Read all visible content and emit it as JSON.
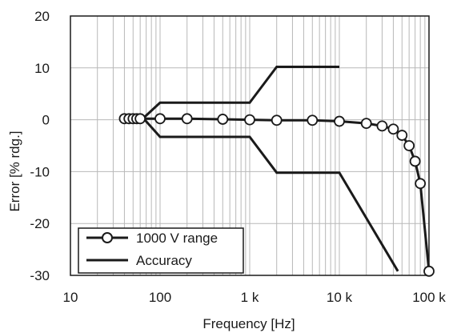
{
  "chart_data": {
    "type": "line",
    "xscale": "log",
    "xlim": [
      10,
      100000
    ],
    "ylim": [
      -30,
      20
    ],
    "xticks": [
      10,
      100,
      1000,
      10000,
      100000
    ],
    "xtick_labels": [
      "10",
      "100",
      "1 k",
      "10 k",
      "100 k"
    ],
    "yticks": [
      20,
      10,
      0,
      -10,
      -20,
      -30
    ],
    "ytick_labels": [
      "20",
      "10",
      "0",
      "-10",
      "-20",
      "-30"
    ],
    "xlabel": "Frequency [Hz]",
    "ylabel": "Error [% rdg.]",
    "grid": true,
    "legend_position": "bottom-left",
    "series": [
      {
        "name": "1000 V range",
        "color": "#1a1a1a",
        "marker": "circle-open",
        "x": [
          40,
          45,
          50,
          55,
          60,
          100,
          200,
          500,
          1000,
          2000,
          5000,
          10000,
          20000,
          30000,
          40000,
          50000,
          60000,
          70000,
          80000,
          100000
        ],
        "y": [
          0.2,
          0.2,
          0.2,
          0.2,
          0.2,
          0.2,
          0.2,
          0.1,
          0.0,
          -0.1,
          -0.1,
          -0.3,
          -0.7,
          -1.2,
          -1.8,
          -3.0,
          -5.0,
          -8.0,
          -12.3,
          -29.2
        ]
      },
      {
        "name": "Accuracy",
        "color": "#1a1a1a",
        "marker": "none",
        "segments": [
          {
            "x": [
              40,
              65,
              100,
              1000,
              2000,
              10000
            ],
            "y": [
              0.3,
              0.3,
              3.3,
              3.3,
              10.2,
              10.2
            ]
          },
          {
            "x": [
              40,
              65,
              100,
              1000,
              2000,
              10000,
              45000
            ],
            "y": [
              0.3,
              0.3,
              -3.3,
              -3.3,
              -10.2,
              -10.2,
              -29.2
            ]
          }
        ]
      }
    ]
  }
}
